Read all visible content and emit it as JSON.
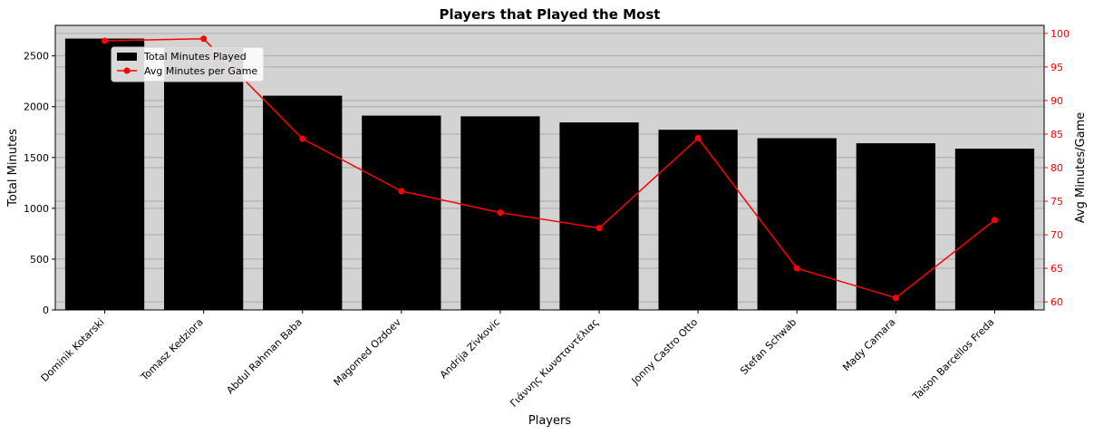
{
  "chart_data": {
    "type": "bar",
    "title": "Players that Played the Most",
    "xlabel": "Players",
    "ylabel": "Total Minutes",
    "y2label": "Avg Minutes/Game",
    "categories": [
      "Dominik Kotarski",
      "Tomasz Kedziora",
      "Abdul Rahman Baba",
      "Magomed Ozdoev",
      "Andrija Zivkovic",
      "Γιάννης Κωνσταντέλιας",
      "Jonny Castro Otto",
      "Stefan Schwab",
      "Mady Camara",
      "Taison Barcellos Freda"
    ],
    "series": [
      {
        "name": "Total Minutes Played",
        "type": "bar",
        "axis": "left",
        "color": "#000000",
        "values": [
          2670,
          2578,
          2108,
          1912,
          1905,
          1845,
          1773,
          1690,
          1640,
          1587
        ]
      },
      {
        "name": "Avg Minutes per Game",
        "type": "line",
        "axis": "right",
        "color": "#ff0000",
        "values": [
          98.9,
          99.2,
          84.3,
          76.5,
          73.3,
          71.0,
          84.4,
          65.0,
          60.6,
          72.2
        ]
      }
    ],
    "ylim": [
      0,
      2800
    ],
    "yticks": [
      0,
      500,
      1000,
      1500,
      2000,
      2500
    ],
    "y2lim": [
      58.8,
      101.2
    ],
    "y2ticks": [
      60,
      65,
      70,
      75,
      80,
      85,
      90,
      95,
      100
    ],
    "grid": true,
    "legend_position": "upper-left",
    "background": "#d3d3d3"
  }
}
